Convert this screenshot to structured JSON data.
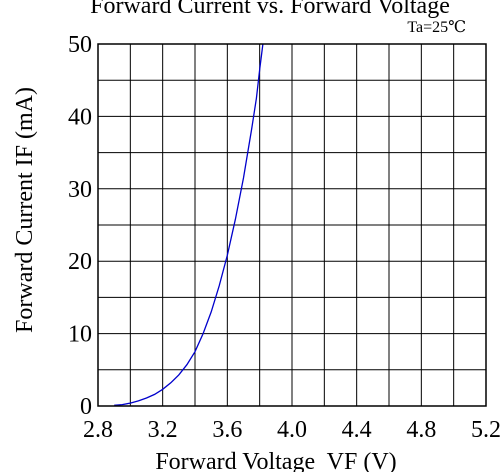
{
  "chart_data": {
    "type": "line",
    "title": "Forward Current vs. Forward Voltage",
    "annotation": "Ta=25℃",
    "xlabel": "Forward Voltage  VF (V)",
    "ylabel": "Forward Current IF (mA)",
    "xlim": [
      2.8,
      5.2
    ],
    "ylim": [
      0,
      50
    ],
    "x_ticks": [
      "2.8",
      "3.2",
      "3.6",
      "4.0",
      "4.4",
      "4.8",
      "5.2"
    ],
    "y_ticks": [
      "0",
      "10",
      "20",
      "30",
      "40",
      "50"
    ],
    "x_grid_step": 0.2,
    "y_grid_step": 5,
    "grid": true,
    "series": [
      {
        "color": "#0000cc",
        "x": [
          2.9,
          2.95,
          3.0,
          3.05,
          3.1,
          3.15,
          3.2,
          3.25,
          3.3,
          3.35,
          3.4,
          3.45,
          3.5,
          3.55,
          3.6,
          3.65,
          3.7,
          3.75,
          3.78,
          3.8,
          3.82
        ],
        "y": [
          0.1,
          0.2,
          0.4,
          0.7,
          1.1,
          1.6,
          2.3,
          3.2,
          4.3,
          5.7,
          7.5,
          10.0,
          13.0,
          16.6,
          20.8,
          25.8,
          31.5,
          38.2,
          42.5,
          46.5,
          50.0
        ]
      }
    ]
  }
}
